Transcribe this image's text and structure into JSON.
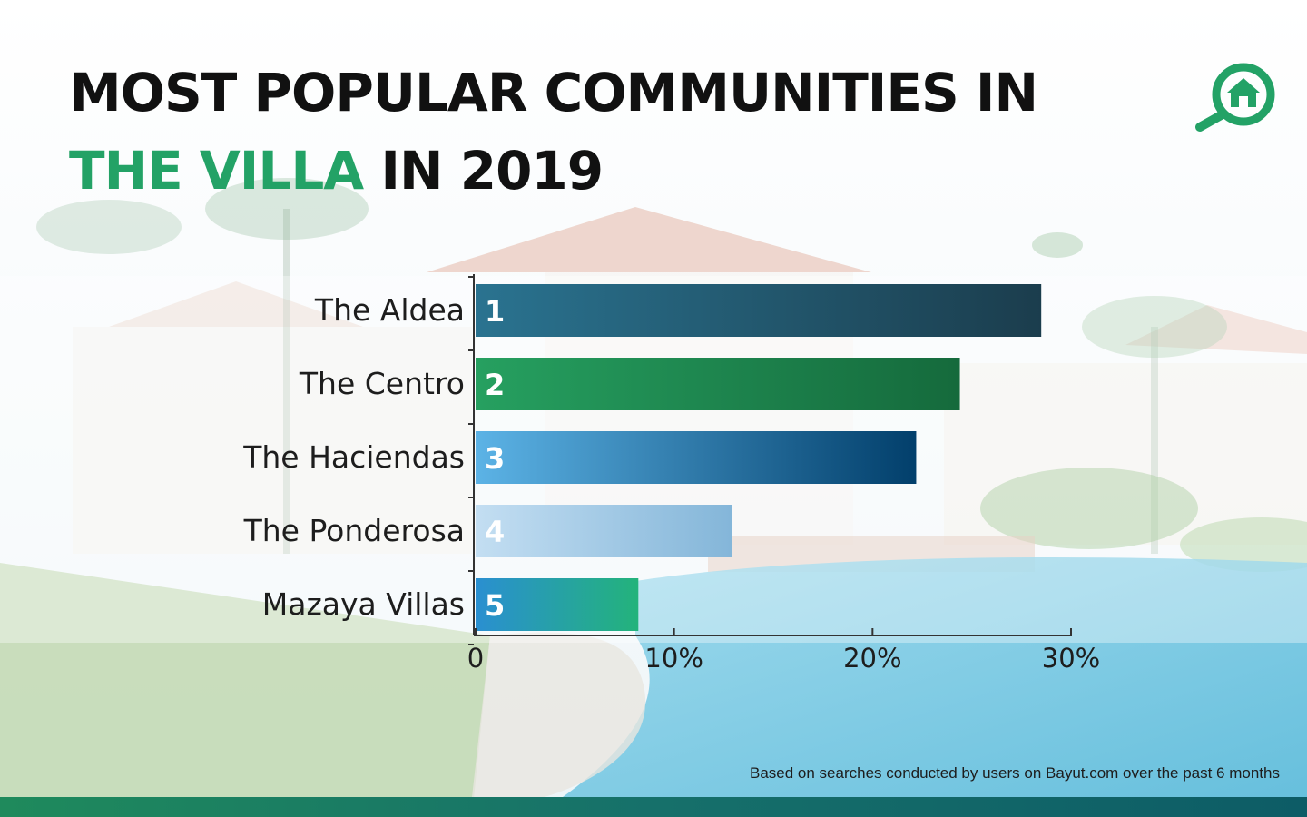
{
  "title": {
    "line1": "MOST POPULAR COMMUNITIES IN",
    "line2_accent": "THE VILLA",
    "line2_rest": " IN 2019"
  },
  "logo_icon": "magnifier-house-icon",
  "colors": {
    "accent_green": "#23a266",
    "bottom_bar": "#16706a"
  },
  "chart_data": {
    "type": "bar",
    "orientation": "horizontal",
    "categories": [
      "The Aldea",
      "The Centro",
      "The Haciendas",
      "The Ponderosa",
      "Mazaya Villas"
    ],
    "ranks": [
      "1",
      "2",
      "3",
      "4",
      "5"
    ],
    "values": [
      28.5,
      24.4,
      22.2,
      12.9,
      8.2
    ],
    "bar_colors": [
      [
        "#2a7390",
        "#1b3d4d"
      ],
      [
        "#26a060",
        "#156a3c"
      ],
      [
        "#5cb3e6",
        "#023f6b"
      ],
      [
        "#c3def2",
        "#84b6d9"
      ],
      [
        "#2a8fd1",
        "#23b37b"
      ]
    ],
    "xlim": [
      0,
      30
    ],
    "xticks": [
      0,
      10,
      20,
      30
    ],
    "xtick_labels": [
      "0",
      "10%",
      "20%",
      "30%"
    ],
    "grid": false
  },
  "footnote": "Based on searches conducted by users on Bayut.com over the past 6 months"
}
